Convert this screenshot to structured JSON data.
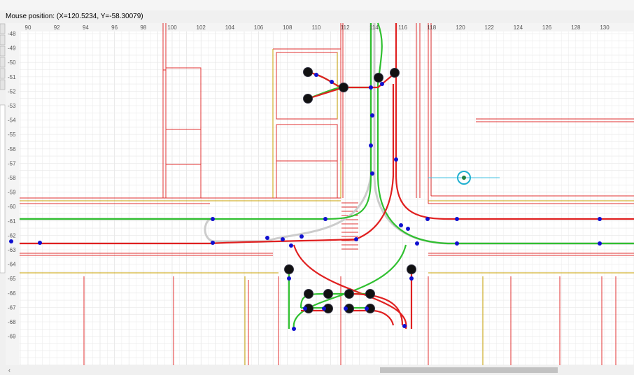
{
  "status_bar": {
    "mouse_position": "Mouse position: (X=120.5234, Y=-58.30079)"
  },
  "ruler": {
    "x_labels": [
      "90",
      "92",
      "94",
      "96",
      "98",
      "100",
      "102",
      "104",
      "106",
      "108",
      "110",
      "112",
      "114",
      "116",
      "118",
      "120",
      "122",
      "124",
      "126",
      "128",
      "130"
    ],
    "y_labels": [
      "-48",
      "-49",
      "-50",
      "-51",
      "-52",
      "-53",
      "-54",
      "-55",
      "-56",
      "-57",
      "-58",
      "-59",
      "-60",
      "-61",
      "-62",
      "-63",
      "-64",
      "-65",
      "-66",
      "-67",
      "-68",
      "-69"
    ]
  }
}
